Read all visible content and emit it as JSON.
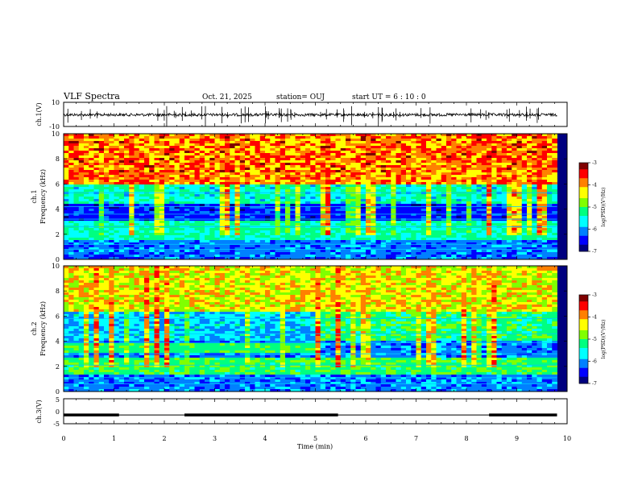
{
  "header": {
    "title": "VLF Spectra",
    "date": "Oct. 21, 2025",
    "station": "station= OUJ",
    "start_ut": "start  UT  =   6  : 10 : 0"
  },
  "chart_data": [
    {
      "id": "ch1-waveform",
      "type": "line",
      "ylabel": "ch.1(V)",
      "xlim": [
        0,
        10
      ],
      "ylim": [
        -10,
        10
      ],
      "yticks": [
        "10",
        "-10"
      ],
      "baseline": 0,
      "note": "noise waveform around 0 V with impulsive spikes"
    },
    {
      "id": "ch1-spectrogram",
      "type": "heatmap",
      "ylabel": "ch.1\nFrequency  (kHz)",
      "ylabel_lines": [
        "ch.1",
        "Frequency  (kHz)"
      ],
      "xlim": [
        0,
        10
      ],
      "ylim": [
        0,
        10
      ],
      "yticks": [
        "0",
        "2",
        "4",
        "6",
        "8",
        "10"
      ],
      "data_end_min": 9.8,
      "colorbar": {
        "label": "log(PSD)(V²/Hz)",
        "range": [
          -7,
          -3
        ],
        "ticks": [
          "-3",
          "-4",
          "-5",
          "-6",
          "-7"
        ]
      }
    },
    {
      "id": "ch2-spectrogram",
      "type": "heatmap",
      "ylabel": "ch.2\nFrequency  (kHz)",
      "ylabel_lines": [
        "ch.2",
        "Frequency  (kHz)"
      ],
      "xlim": [
        0,
        10
      ],
      "ylim": [
        0,
        10
      ],
      "yticks": [
        "0",
        "2",
        "4",
        "6",
        "8",
        "10"
      ],
      "data_end_min": 9.8,
      "band_3khz_end_min": 5.0,
      "colorbar": {
        "label": "log(PSD)(V²/Hz)",
        "range": [
          -7,
          -3
        ],
        "ticks": [
          "-3",
          "-4",
          "-5",
          "-6",
          "-7"
        ]
      }
    },
    {
      "id": "ch3-signal",
      "type": "line",
      "ylabel": "ch.3(V)",
      "xlim": [
        0,
        10
      ],
      "ylim": [
        -5,
        5
      ],
      "yticks": [
        "5",
        "0",
        "-5"
      ],
      "level": -1.5,
      "thick_segments_min": [
        [
          0,
          1.1
        ],
        [
          2.4,
          5.45
        ],
        [
          8.45,
          9.8
        ]
      ],
      "xlabel": "Time  (min)",
      "xticks": [
        "0",
        "1",
        "2",
        "3",
        "4",
        "5",
        "6",
        "7",
        "8",
        "9",
        "10"
      ]
    }
  ],
  "colormap": [
    "#00007f",
    "#0000ff",
    "#0080ff",
    "#00ffff",
    "#00ff80",
    "#80ff00",
    "#ffff00",
    "#ff8000",
    "#ff0000",
    "#7f0000"
  ]
}
